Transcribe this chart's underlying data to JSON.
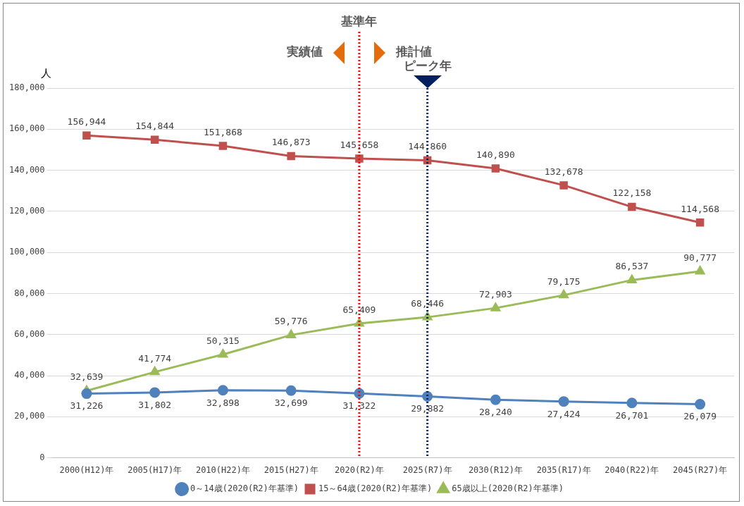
{
  "chart_data": {
    "type": "line",
    "ylabel": "人",
    "categories": [
      "2000(H12)年",
      "2005(H17)年",
      "2010(H22)年",
      "2015(H27)年",
      "2020(R2)年",
      "2025(R7)年",
      "2030(R12)年",
      "2035(R17)年",
      "2040(R22)年",
      "2045(R27)年"
    ],
    "series": [
      {
        "name": "0～14歳(2020(R2)年基準)",
        "color": "#4f81bd",
        "marker": "circle",
        "values": [
          31226,
          31802,
          32898,
          32699,
          31322,
          29882,
          28240,
          27424,
          26701,
          26079
        ],
        "value_labels": [
          "31,226",
          "31,802",
          "32,898",
          "32,699",
          "31,322",
          "29,882",
          "28,240",
          "27,424",
          "26,701",
          "26,079"
        ]
      },
      {
        "name": "15～64歳(2020(R2)年基準)",
        "color": "#c0504d",
        "marker": "square",
        "values": [
          156944,
          154844,
          151868,
          146873,
          145658,
          144860,
          140890,
          132678,
          122158,
          114568
        ],
        "value_labels": [
          "156,944",
          "154,844",
          "151,868",
          "146,873",
          "145,658",
          "144,860",
          "140,890",
          "132,678",
          "122,158",
          "114,568"
        ]
      },
      {
        "name": "65歳以上(2020(R2)年基準)",
        "color": "#9bbb59",
        "marker": "triangle",
        "values": [
          32639,
          41774,
          50315,
          59776,
          65409,
          68446,
          72903,
          79175,
          86537,
          90777
        ],
        "value_labels": [
          "32,639",
          "41,774",
          "50,315",
          "59,776",
          "65,409",
          "68,446",
          "72,903",
          "79,175",
          "86,537",
          "90,777"
        ]
      }
    ],
    "ylim": [
      0,
      180000
    ],
    "yticks": [
      0,
      {
        "value": 20000,
        "label": "20,000"
      },
      {
        "value": 40000,
        "label": "40,000"
      },
      {
        "value": 60000,
        "label": "60,000"
      },
      {
        "value": 80000,
        "label": "80,000"
      },
      {
        "value": 100000,
        "label": "100,000"
      },
      {
        "value": 120000,
        "label": "120,000"
      },
      {
        "value": 140000,
        "label": "140,000"
      },
      {
        "value": 160000,
        "label": "160,000"
      },
      {
        "value": 180000,
        "label": "180,000"
      }
    ],
    "grid": "y",
    "legend": "bottom",
    "ref_lines": [
      {
        "axis": "x",
        "value": "2020(R2)年",
        "label": "基準年",
        "color": "#ff0000",
        "line_style": "dotted"
      },
      {
        "axis": "x",
        "value": "2025(R7)年",
        "label": "ピーク年",
        "color": "#002060",
        "line_style": "dotted"
      }
    ],
    "annotations": [
      "実績値",
      "推計値"
    ]
  }
}
